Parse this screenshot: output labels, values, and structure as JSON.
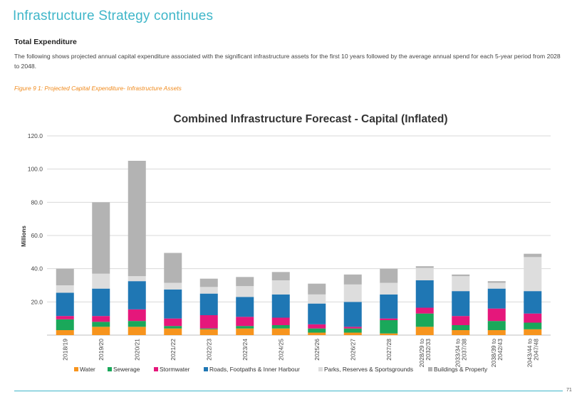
{
  "page": {
    "heading": "Infrastructure Strategy continues",
    "section_title": "Total Expenditure",
    "intro": "The following shows projected annual capital expenditure associated with the significant infrastructure assets  for the first 10 years followed by the average annual spend for each 5-year period from 2028 to 2048.",
    "figure_caption": "Figure 9 1:  Projected Capital Expenditure- Infrastructure Assets",
    "page_number": "71"
  },
  "chart_data": {
    "type": "bar",
    "stacked": true,
    "title": "Combined Infrastructure Forecast - Capital (Inflated)",
    "xlabel": "",
    "ylabel": "Millions",
    "ylim": [
      0,
      120
    ],
    "yticks": [
      "",
      "20.0",
      "40.0",
      "60.0",
      "80.0",
      "100.0",
      "120.0"
    ],
    "ytick_values": [
      0,
      20,
      40,
      60,
      80,
      100,
      120
    ],
    "grid": true,
    "legend_position": "bottom",
    "categories": [
      [
        "2018/19"
      ],
      [
        "2019/20"
      ],
      [
        "2020/21"
      ],
      [
        "2021/22"
      ],
      [
        "2022/23"
      ],
      [
        "2023/24"
      ],
      [
        "2024/25"
      ],
      [
        "2025/26"
      ],
      [
        "2026/27"
      ],
      [
        "2027/28"
      ],
      [
        "2028/29 to",
        "2032/33"
      ],
      [
        "2033/34 to",
        "2037/38"
      ],
      [
        "2038/39 to",
        "2042/43"
      ],
      [
        "2043/44 to",
        "2047/48"
      ]
    ],
    "series": [
      {
        "name": "Water",
        "color": "#f7941d",
        "values": [
          3,
          5,
          5,
          4,
          3.5,
          4,
          4,
          1.5,
          1.5,
          1,
          5,
          3,
          3,
          3.5
        ]
      },
      {
        "name": "Sewerage",
        "color": "#1aa85a",
        "values": [
          6.5,
          3,
          3.5,
          1.5,
          0.5,
          1.5,
          2,
          2.5,
          2.5,
          8,
          8,
          3,
          5.5,
          4
        ]
      },
      {
        "name": "Stormwater",
        "color": "#e5177b",
        "values": [
          2,
          3.5,
          7,
          4.5,
          8,
          5.5,
          4.5,
          2.5,
          1,
          1,
          3.5,
          5.5,
          7.5,
          5.5
        ]
      },
      {
        "name": "Roads, Footpaths & Inner Harbour",
        "color": "#1f77b4",
        "values": [
          14,
          16.5,
          17,
          17.5,
          13,
          12,
          14,
          12.5,
          15,
          14.5,
          16.5,
          15,
          12,
          13.5
        ]
      },
      {
        "name": "Parks, Reserves & Sportsgrounds",
        "color": "#dddddd",
        "values": [
          4.5,
          9,
          3,
          4,
          4,
          6.5,
          8.5,
          5.5,
          10.5,
          7,
          7.5,
          9,
          3.5,
          20.5
        ]
      },
      {
        "name": "Buildings & Property",
        "color": "#b3b3b3",
        "values": [
          10,
          43,
          69.5,
          18,
          5,
          5.5,
          5,
          6.5,
          6,
          8.5,
          1,
          1,
          1,
          2
        ]
      }
    ]
  }
}
